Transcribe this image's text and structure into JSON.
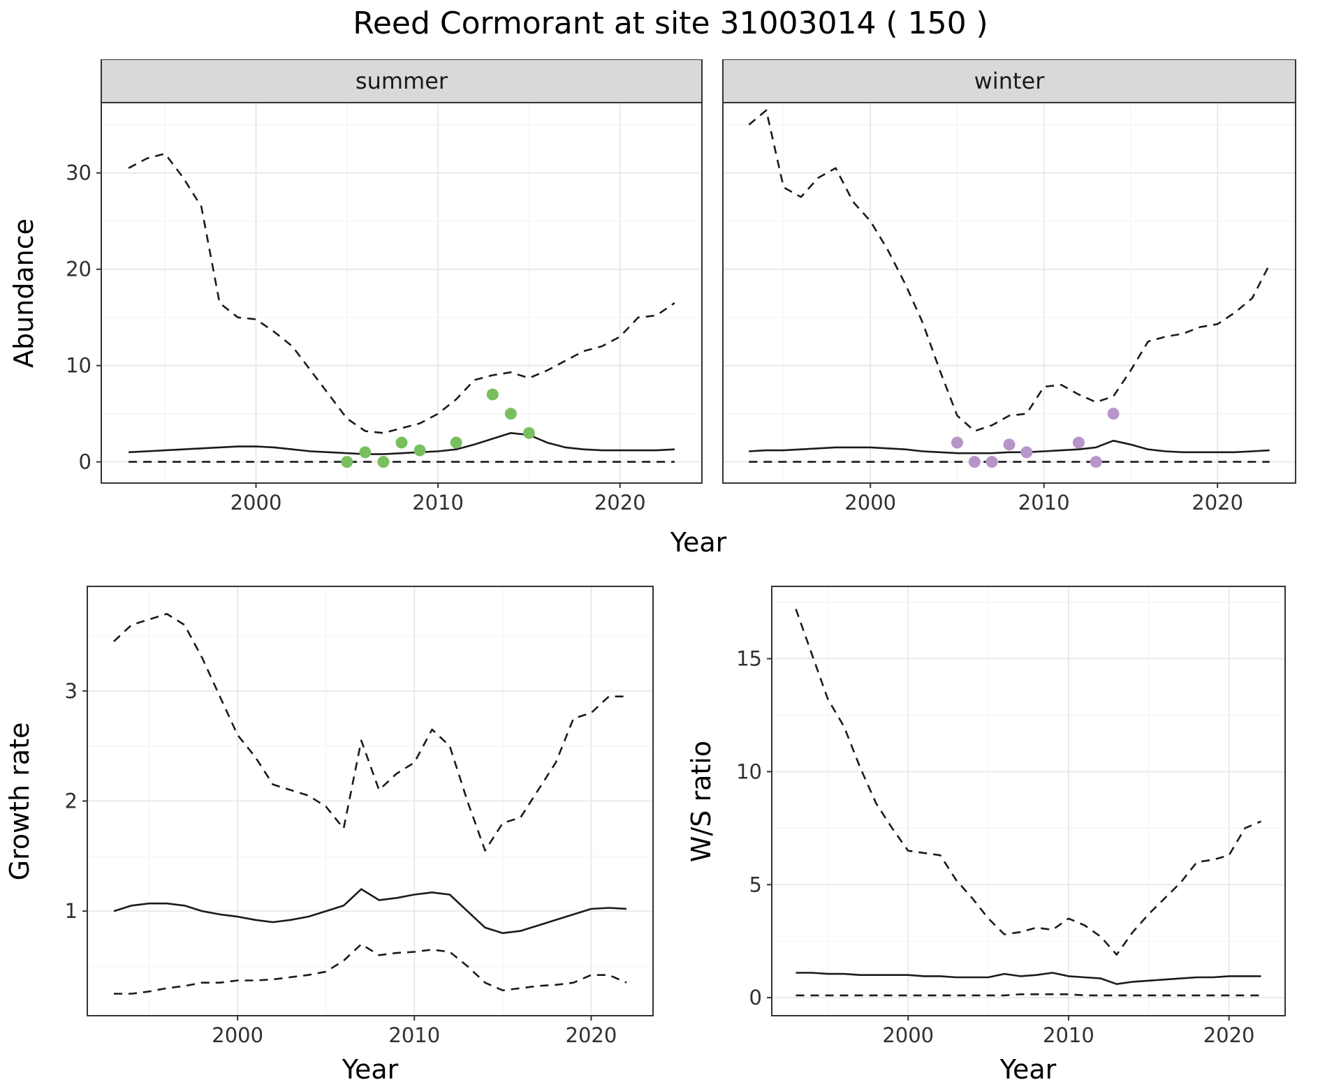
{
  "title": "Reed Cormorant at site 31003014 ( 150 )",
  "colors": {
    "line": "#1a1a1a",
    "summer_points": "#7abf5f",
    "winter_points": "#b795ca",
    "strip_bg": "#d9d9d9",
    "panel_border": "#333333",
    "grid_major": "#e8e8e8",
    "grid_minor": "#f4f4f4",
    "tick_text": "#303030"
  },
  "chart_data": [
    {
      "id": "summer",
      "type": "line",
      "facet_label": "summer",
      "xlabel": "Year",
      "ylabel": "Abundance",
      "xlim": [
        1991.5,
        2024.5
      ],
      "ylim": [
        -2.2,
        37.3
      ],
      "xticks": [
        2000,
        2010,
        2020
      ],
      "yticks": [
        0,
        10,
        20,
        30
      ],
      "grid": true,
      "legend": "none",
      "x": [
        1993,
        1994,
        1995,
        1996,
        1997,
        1998,
        1999,
        2000,
        2001,
        2002,
        2003,
        2004,
        2005,
        2006,
        2007,
        2008,
        2009,
        2010,
        2011,
        2012,
        2013,
        2014,
        2015,
        2016,
        2017,
        2018,
        2019,
        2020,
        2021,
        2022,
        2023
      ],
      "series": [
        {
          "name": "upper-ci",
          "style": "dashed",
          "values": [
            30.5,
            31.5,
            32.0,
            29.5,
            26.5,
            16.5,
            15.0,
            14.8,
            13.5,
            12.0,
            9.5,
            7.0,
            4.5,
            3.2,
            3.0,
            3.5,
            4.0,
            5.0,
            6.5,
            8.5,
            9.0,
            9.3,
            8.7,
            9.5,
            10.5,
            11.5,
            12.0,
            13.0,
            15.0,
            15.2,
            16.5
          ]
        },
        {
          "name": "median",
          "style": "solid",
          "values": [
            1.0,
            1.1,
            1.2,
            1.3,
            1.4,
            1.5,
            1.6,
            1.6,
            1.5,
            1.3,
            1.1,
            1.0,
            0.9,
            0.8,
            0.8,
            0.9,
            1.0,
            1.1,
            1.3,
            1.8,
            2.4,
            3.0,
            2.8,
            2.0,
            1.5,
            1.3,
            1.2,
            1.2,
            1.2,
            1.2,
            1.3
          ]
        },
        {
          "name": "lower-ci",
          "style": "dashed",
          "values": [
            0,
            0,
            0,
            0,
            0,
            0,
            0,
            0,
            0,
            0,
            0,
            0,
            0,
            0,
            0,
            0,
            0,
            0,
            0,
            0,
            0,
            0,
            0,
            0,
            0,
            0,
            0,
            0,
            0,
            0,
            0
          ]
        }
      ],
      "points": {
        "name": "summer-observed-counts",
        "color": "#7abf5f",
        "x": [
          2005,
          2006,
          2007,
          2008,
          2009,
          2011,
          2013,
          2014,
          2015
        ],
        "y": [
          0,
          1,
          0,
          2,
          1.2,
          2,
          7,
          5,
          3
        ]
      }
    },
    {
      "id": "winter",
      "type": "line",
      "facet_label": "winter",
      "xlabel": "Year",
      "ylabel": "Abundance",
      "xlim": [
        1991.5,
        2024.5
      ],
      "ylim": [
        -2.2,
        37.3
      ],
      "xticks": [
        2000,
        2010,
        2020
      ],
      "yticks": [
        0,
        10,
        20,
        30
      ],
      "grid": true,
      "legend": "none",
      "x": [
        1993,
        1994,
        1995,
        1996,
        1997,
        1998,
        1999,
        2000,
        2001,
        2002,
        2003,
        2004,
        2005,
        2006,
        2007,
        2008,
        2009,
        2010,
        2011,
        2012,
        2013,
        2014,
        2015,
        2016,
        2017,
        2018,
        2019,
        2020,
        2021,
        2022,
        2023
      ],
      "series": [
        {
          "name": "upper-ci",
          "style": "dashed",
          "values": [
            35.0,
            36.5,
            28.5,
            27.5,
            29.5,
            30.5,
            27.0,
            25.0,
            22.0,
            18.5,
            14.5,
            9.5,
            4.8,
            3.2,
            3.8,
            4.8,
            5.0,
            7.8,
            8.0,
            7.0,
            6.2,
            6.8,
            9.5,
            12.5,
            13.0,
            13.3,
            14.0,
            14.3,
            15.5,
            17.0,
            20.5
          ]
        },
        {
          "name": "median",
          "style": "solid",
          "values": [
            1.1,
            1.2,
            1.2,
            1.3,
            1.4,
            1.5,
            1.5,
            1.5,
            1.4,
            1.3,
            1.1,
            1.0,
            0.9,
            0.9,
            0.9,
            1.0,
            1.0,
            1.1,
            1.2,
            1.3,
            1.5,
            2.2,
            1.8,
            1.3,
            1.1,
            1.0,
            1.0,
            1.0,
            1.0,
            1.1,
            1.2
          ]
        },
        {
          "name": "lower-ci",
          "style": "dashed",
          "values": [
            0,
            0,
            0,
            0,
            0,
            0,
            0,
            0,
            0,
            0,
            0,
            0,
            0,
            0,
            0,
            0,
            0,
            0,
            0,
            0,
            0,
            0,
            0,
            0,
            0,
            0,
            0,
            0,
            0,
            0,
            0
          ]
        }
      ],
      "points": {
        "name": "winter-observed-counts",
        "color": "#b795ca",
        "x": [
          2005,
          2006,
          2007,
          2008,
          2009,
          2012,
          2013,
          2014
        ],
        "y": [
          2,
          0,
          0,
          1.8,
          1,
          2,
          0,
          5
        ]
      }
    },
    {
      "id": "growth",
      "type": "line",
      "facet_label": "",
      "xlabel": "Year",
      "ylabel": "Growth rate",
      "xlim": [
        1991.5,
        2023.5
      ],
      "ylim": [
        0.05,
        3.95
      ],
      "xticks": [
        2000,
        2010,
        2020
      ],
      "yticks": [
        1,
        2,
        3
      ],
      "grid": true,
      "legend": "none",
      "x": [
        1993,
        1994,
        1995,
        1996,
        1997,
        1998,
        1999,
        2000,
        2001,
        2002,
        2003,
        2004,
        2005,
        2006,
        2007,
        2008,
        2009,
        2010,
        2011,
        2012,
        2013,
        2014,
        2015,
        2016,
        2017,
        2018,
        2019,
        2020,
        2021,
        2022
      ],
      "series": [
        {
          "name": "upper-ci",
          "style": "dashed",
          "values": [
            3.45,
            3.6,
            3.65,
            3.7,
            3.6,
            3.3,
            2.95,
            2.6,
            2.4,
            2.15,
            2.1,
            2.05,
            1.95,
            1.75,
            2.55,
            2.1,
            2.25,
            2.35,
            2.65,
            2.5,
            2.0,
            1.55,
            1.8,
            1.85,
            2.1,
            2.35,
            2.75,
            2.8,
            2.95,
            2.95
          ]
        },
        {
          "name": "median",
          "style": "solid",
          "values": [
            1.0,
            1.05,
            1.07,
            1.07,
            1.05,
            1.0,
            0.97,
            0.95,
            0.92,
            0.9,
            0.92,
            0.95,
            1.0,
            1.05,
            1.2,
            1.1,
            1.12,
            1.15,
            1.17,
            1.15,
            1.0,
            0.85,
            0.8,
            0.82,
            0.87,
            0.92,
            0.97,
            1.02,
            1.03,
            1.02
          ]
        },
        {
          "name": "lower-ci",
          "style": "dashed",
          "values": [
            0.25,
            0.25,
            0.27,
            0.3,
            0.32,
            0.35,
            0.35,
            0.37,
            0.37,
            0.38,
            0.4,
            0.42,
            0.45,
            0.55,
            0.7,
            0.6,
            0.62,
            0.63,
            0.65,
            0.63,
            0.5,
            0.35,
            0.28,
            0.3,
            0.32,
            0.33,
            0.35,
            0.42,
            0.42,
            0.35
          ]
        }
      ]
    },
    {
      "id": "ws",
      "type": "line",
      "facet_label": "",
      "xlabel": "Year",
      "ylabel": "W/S ratio",
      "xlim": [
        1991.5,
        2023.5
      ],
      "ylim": [
        -0.8,
        18.2
      ],
      "xticks": [
        2000,
        2010,
        2020
      ],
      "yticks": [
        0,
        5,
        10,
        15
      ],
      "grid": true,
      "legend": "none",
      "x": [
        1993,
        1994,
        1995,
        1996,
        1997,
        1998,
        1999,
        2000,
        2001,
        2002,
        2003,
        2004,
        2005,
        2006,
        2007,
        2008,
        2009,
        2010,
        2011,
        2012,
        2013,
        2014,
        2015,
        2016,
        2017,
        2018,
        2019,
        2020,
        2021,
        2022
      ],
      "series": [
        {
          "name": "upper-ci",
          "style": "dashed",
          "values": [
            17.2,
            15.2,
            13.2,
            12.0,
            10.2,
            8.6,
            7.5,
            6.5,
            6.4,
            6.3,
            5.2,
            4.4,
            3.5,
            2.8,
            2.9,
            3.1,
            3.0,
            3.5,
            3.2,
            2.7,
            1.9,
            2.9,
            3.7,
            4.4,
            5.1,
            6.0,
            6.1,
            6.3,
            7.5,
            7.8
          ]
        },
        {
          "name": "median",
          "style": "solid",
          "values": [
            1.1,
            1.1,
            1.05,
            1.05,
            1.0,
            1.0,
            1.0,
            1.0,
            0.95,
            0.95,
            0.9,
            0.9,
            0.9,
            1.05,
            0.95,
            1.0,
            1.1,
            0.95,
            0.9,
            0.85,
            0.6,
            0.7,
            0.75,
            0.8,
            0.85,
            0.9,
            0.9,
            0.95,
            0.95,
            0.95
          ]
        },
        {
          "name": "lower-ci",
          "style": "dashed",
          "values": [
            0.1,
            0.1,
            0.1,
            0.1,
            0.1,
            0.1,
            0.1,
            0.1,
            0.1,
            0.1,
            0.1,
            0.1,
            0.1,
            0.1,
            0.15,
            0.15,
            0.15,
            0.15,
            0.1,
            0.1,
            0.1,
            0.1,
            0.1,
            0.1,
            0.1,
            0.1,
            0.1,
            0.1,
            0.1,
            0.1
          ]
        }
      ]
    }
  ]
}
